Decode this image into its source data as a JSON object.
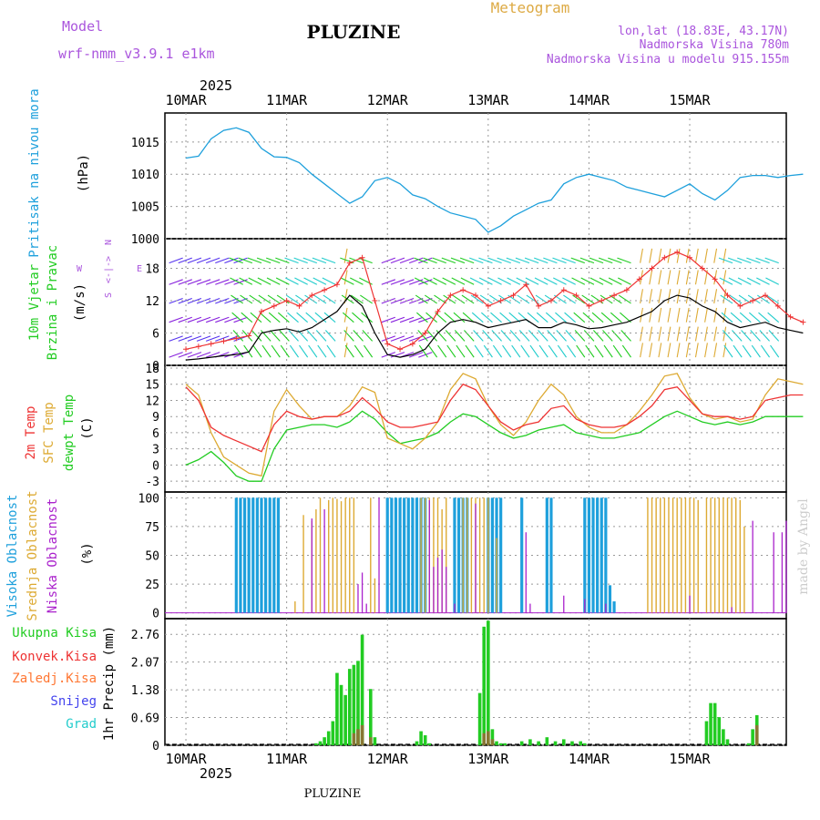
{
  "header": {
    "model_label": "Model",
    "model_name": "wrf-nmm_v3.9.1 e1km",
    "station": "PLUZINE",
    "meteogram_label": "Meteogram",
    "lonlat": "lon,lat (18.83E, 43.17N)",
    "altitude": "Nadmorska Visina 780m",
    "model_altitude": "Nadmorska Visina u modelu 915.155m",
    "year_top": "2025",
    "year_bottom": "2025",
    "footer_station": "PLUZINE",
    "watermark": "made by Angel"
  },
  "colors": {
    "pressure": "#1ea0dc",
    "wind_label": "#22cc22",
    "temp2m": "#ee3333",
    "sfctemp": "#ddaa33",
    "dewpt": "#22cc22",
    "cloud_high": "#1ea0dc",
    "cloud_mid": "#ddaa33",
    "cloud_low": "#aa22cc",
    "precip_total": "#22cc22",
    "precip_conv": "#ee3333",
    "precip_frz": "#ff7733",
    "precip_snow": "#4444ee",
    "precip_grad": "#22cccc",
    "model": "#aa55dd",
    "meteogram": "#ddaa44"
  },
  "chart_data": [
    {
      "type": "line",
      "panel": "pressure",
      "ylabel_side": "Pritisak na nivou mora",
      "ylabel": "(hPa)",
      "x_ticks": [
        "10MAR",
        "11MAR",
        "12MAR",
        "13MAR",
        "14MAR",
        "15MAR"
      ],
      "yticks": [
        "1000",
        "1005",
        "1010",
        "1015"
      ],
      "ylim": [
        1000,
        1019.5
      ],
      "x_hours": [
        0,
        3,
        6,
        9,
        12,
        15,
        18,
        21,
        24,
        27,
        30,
        33,
        36,
        39,
        42,
        45,
        48,
        51,
        54,
        57,
        60,
        63,
        66,
        69,
        72,
        75,
        78,
        81,
        84,
        87,
        90,
        93,
        96,
        99,
        102,
        105,
        108,
        111,
        114,
        117,
        120,
        123,
        126,
        129,
        132,
        135,
        138,
        141,
        144,
        147
      ],
      "series": [
        {
          "name": "",
          "values": [
            1012.5,
            1012.8,
            1015.5,
            1016.8,
            1017.2,
            1016.5,
            1014.0,
            1012.7,
            1012.6,
            1011.8,
            1010.0,
            1008.5,
            1007.0,
            1005.5,
            1006.5,
            1009.0,
            1009.5,
            1008.5,
            1006.8,
            1006.2,
            1005.0,
            1004.0,
            1003.5,
            1003.0,
            1001.0,
            1002.0,
            1003.5,
            1004.5,
            1005.5,
            1006.0,
            1008.5,
            1009.5,
            1010.0,
            1009.5,
            1009.0,
            1008.0,
            1007.5,
            1007.0,
            1006.5,
            1007.5,
            1008.5,
            1007.0,
            1006.0,
            1007.5,
            1009.5,
            1009.8,
            1009.8,
            1009.5,
            1009.8,
            1010.0
          ]
        }
      ]
    },
    {
      "type": "line",
      "panel": "wind",
      "ylabel_side": [
        "10m Vjetar",
        "Brzina i Pravac"
      ],
      "ylabel": "(m/s)",
      "yticks": [
        "0",
        "6",
        "12",
        "18"
      ],
      "ylim": [
        0,
        23.5
      ],
      "compass": {
        "w": "W",
        "e": "E",
        "n": "N",
        "s": "S",
        "arrows": "<-|->"
      },
      "x_hours": [
        0,
        3,
        6,
        9,
        12,
        15,
        18,
        21,
        24,
        27,
        30,
        33,
        36,
        39,
        42,
        45,
        48,
        51,
        54,
        57,
        60,
        63,
        66,
        69,
        72,
        75,
        78,
        81,
        84,
        87,
        90,
        93,
        96,
        99,
        102,
        105,
        108,
        111,
        114,
        117,
        120,
        123,
        126,
        129,
        132,
        135,
        138,
        141,
        144,
        147
      ],
      "series": [
        {
          "name": "speed",
          "values": [
            1,
            1.2,
            1.5,
            1.8,
            2,
            2.5,
            6,
            6.5,
            6.8,
            6.2,
            7,
            8.5,
            10,
            13,
            11,
            6,
            2,
            1.5,
            2,
            3,
            6,
            8,
            8.5,
            8,
            7,
            7.5,
            8,
            8.5,
            7,
            7,
            8,
            7.5,
            6.8,
            7,
            7.5,
            8,
            9,
            10,
            12,
            13,
            12.5,
            11,
            10,
            8,
            7,
            7.5,
            8,
            7,
            6.5,
            6
          ],
          "color": "#000000"
        },
        {
          "name": "gust",
          "values": [
            3,
            3.5,
            4,
            4.5,
            5,
            5.5,
            10,
            11,
            12,
            11,
            13,
            14,
            15,
            19,
            20,
            12,
            4,
            3,
            4,
            6,
            10,
            13,
            14,
            13,
            11,
            12,
            13,
            15,
            11,
            12,
            14,
            13,
            11,
            12,
            13,
            14,
            16,
            18,
            20,
            21,
            20,
            18,
            16,
            13,
            11,
            12,
            13,
            11,
            9,
            8
          ],
          "color": "#ee3333"
        }
      ]
    },
    {
      "type": "line",
      "panel": "temperature",
      "ylabel_side": [
        "2m Temp",
        "SFC Temp",
        "dewpt Temp"
      ],
      "ylabel": "(C)",
      "yticks": [
        "-3",
        "0",
        "3",
        "6",
        "9",
        "12",
        "15",
        "18"
      ],
      "ylim": [
        -5,
        18.5
      ],
      "x_hours": [
        0,
        3,
        6,
        9,
        12,
        15,
        18,
        21,
        24,
        27,
        30,
        33,
        36,
        39,
        42,
        45,
        48,
        51,
        54,
        57,
        60,
        63,
        66,
        69,
        72,
        75,
        78,
        81,
        84,
        87,
        90,
        93,
        96,
        99,
        102,
        105,
        108,
        111,
        114,
        117,
        120,
        123,
        126,
        129,
        132,
        135,
        138,
        141,
        144,
        147
      ],
      "series": [
        {
          "name": "2m Temp",
          "values": [
            14.5,
            12,
            7,
            5.5,
            4.5,
            3.5,
            2.5,
            7.5,
            10,
            9,
            8.5,
            9,
            9,
            10,
            12.5,
            10.5,
            8,
            7,
            7,
            7.5,
            8,
            12,
            15,
            14,
            11,
            8,
            6.5,
            7.5,
            8,
            10.5,
            11,
            8.5,
            7.5,
            7,
            7,
            7.5,
            9,
            11,
            14,
            14.5,
            12,
            9.5,
            9,
            9,
            8.5,
            9,
            12,
            12.5,
            13,
            13
          ]
        },
        {
          "name": "SFC Temp",
          "values": [
            15,
            13,
            6,
            1.5,
            0,
            -1.5,
            -2,
            10,
            14,
            11,
            8.5,
            9,
            9,
            11,
            14.5,
            13.5,
            5,
            4,
            3,
            5,
            8,
            14,
            17,
            16,
            11,
            7.5,
            5.5,
            8,
            12,
            15,
            13,
            9,
            7,
            6,
            6,
            7.5,
            10,
            13,
            16.5,
            17,
            12.5,
            9.5,
            8.5,
            9,
            8,
            8.5,
            13,
            16,
            15.5,
            15
          ]
        },
        {
          "name": "dewpt Temp",
          "values": [
            0,
            1,
            2.5,
            0.5,
            -2,
            -3,
            -3,
            3,
            6.5,
            7,
            7.5,
            7.5,
            7,
            8,
            10,
            8.5,
            6,
            4,
            4.5,
            5,
            6,
            8,
            9.5,
            9,
            7.5,
            6,
            5,
            5.5,
            6.5,
            7,
            7.5,
            6,
            5.5,
            5,
            5,
            5.5,
            6,
            7.5,
            9,
            10,
            9,
            8,
            7.5,
            8,
            7.5,
            8,
            9,
            9,
            9,
            9
          ]
        }
      ]
    },
    {
      "type": "bar",
      "panel": "cloud",
      "ylabel_side": [
        "Visoka Oblacnost",
        "Srednja Oblacnost",
        "Niska Oblacnost"
      ],
      "ylabel": "(%)",
      "yticks": [
        "0",
        "25",
        "50",
        "75",
        "100"
      ],
      "ylim": [
        -5,
        105
      ],
      "legend": [
        "Visoka",
        "Srednja",
        "Niska"
      ],
      "high": {
        "x": [
          12,
          13,
          14,
          15,
          16,
          17,
          18,
          19,
          20,
          21,
          22,
          48,
          49,
          50,
          51,
          52,
          53,
          54,
          55,
          56,
          57,
          64,
          65,
          66,
          67,
          72,
          73,
          74,
          75,
          80,
          86,
          87,
          95,
          96,
          97,
          98,
          99,
          100,
          101,
          102
        ],
        "values": [
          100,
          100,
          100,
          100,
          100,
          100,
          100,
          100,
          100,
          100,
          100,
          100,
          100,
          100,
          100,
          100,
          100,
          100,
          100,
          100,
          100,
          100,
          100,
          100,
          100,
          100,
          100,
          100,
          100,
          100,
          100,
          100,
          100,
          100,
          100,
          100,
          100,
          100,
          24,
          10
        ]
      },
      "mid": {
        "x": [
          26,
          28,
          30,
          31,
          32,
          34,
          35,
          36,
          37,
          38,
          39,
          40,
          44,
          45,
          56,
          57,
          58,
          59,
          60,
          61,
          62,
          66,
          67,
          68,
          69,
          70,
          71,
          72,
          74,
          110,
          111,
          112,
          113,
          114,
          115,
          116,
          117,
          118,
          119,
          120,
          121,
          122,
          124,
          125,
          126,
          127,
          128,
          129,
          130,
          131,
          132,
          133
        ],
        "values": [
          10,
          85,
          80,
          90,
          100,
          98,
          100,
          99,
          97,
          100,
          100,
          100,
          100,
          30,
          100,
          100,
          100,
          100,
          100,
          90,
          100,
          100,
          100,
          100,
          100,
          100,
          100,
          100,
          65,
          100,
          100,
          100,
          100,
          100,
          100,
          100,
          100,
          100,
          100,
          100,
          100,
          98,
          100,
          100,
          100,
          100,
          100,
          100,
          100,
          100,
          98,
          75
        ],
        "values_note": ""
      },
      "low": {
        "x": [
          30,
          33,
          41,
          42,
          43,
          46,
          58,
          59,
          60,
          61,
          62,
          64,
          69,
          81,
          82,
          90,
          95,
          100,
          120,
          130,
          135,
          140,
          142,
          143
        ],
        "values": [
          82,
          90,
          25,
          35,
          8,
          100,
          98,
          40,
          48,
          55,
          40,
          8,
          95,
          70,
          8,
          15,
          12,
          8,
          15,
          5,
          80,
          70,
          70,
          80
        ]
      }
    },
    {
      "type": "bar",
      "panel": "precip",
      "ylabel": "1hr Precip (mm)",
      "legend": [
        "Ukupna Kisa",
        "Konvek.Kisa",
        "Zaledj.Kisa",
        "Snijeg",
        "Grad"
      ],
      "yticks": [
        "0",
        "0.69",
        "1.38",
        "2.07",
        "2.76"
      ],
      "ylim": [
        0,
        3.15
      ],
      "x": [
        31,
        32,
        33,
        34,
        35,
        36,
        37,
        38,
        39,
        40,
        41,
        42,
        44,
        45,
        55,
        56,
        57,
        58,
        70,
        71,
        72,
        73,
        74,
        75,
        76,
        80,
        82,
        84,
        86,
        88,
        90,
        92,
        94,
        95,
        124,
        125,
        126,
        127,
        128,
        129,
        134,
        135,
        136
      ],
      "values": [
        0.05,
        0.1,
        0.2,
        0.35,
        0.6,
        1.8,
        1.5,
        1.25,
        1.9,
        2.0,
        2.1,
        2.75,
        1.4,
        0.2,
        0.1,
        0.35,
        0.25,
        0.05,
        1.3,
        2.95,
        3.1,
        0.4,
        0.1,
        0.05,
        0.05,
        0.1,
        0.15,
        0.1,
        0.2,
        0.1,
        0.15,
        0.1,
        0.1,
        0.05,
        0.6,
        1.05,
        1.05,
        0.7,
        0.4,
        0.15,
        0.05,
        0.4,
        0.75
      ],
      "brown_x": [
        40,
        41,
        42,
        44,
        71,
        72,
        73,
        136
      ],
      "brown_values": [
        0.3,
        0.4,
        0.5,
        0.2,
        0.3,
        0.35,
        0.15,
        0.5
      ]
    }
  ]
}
